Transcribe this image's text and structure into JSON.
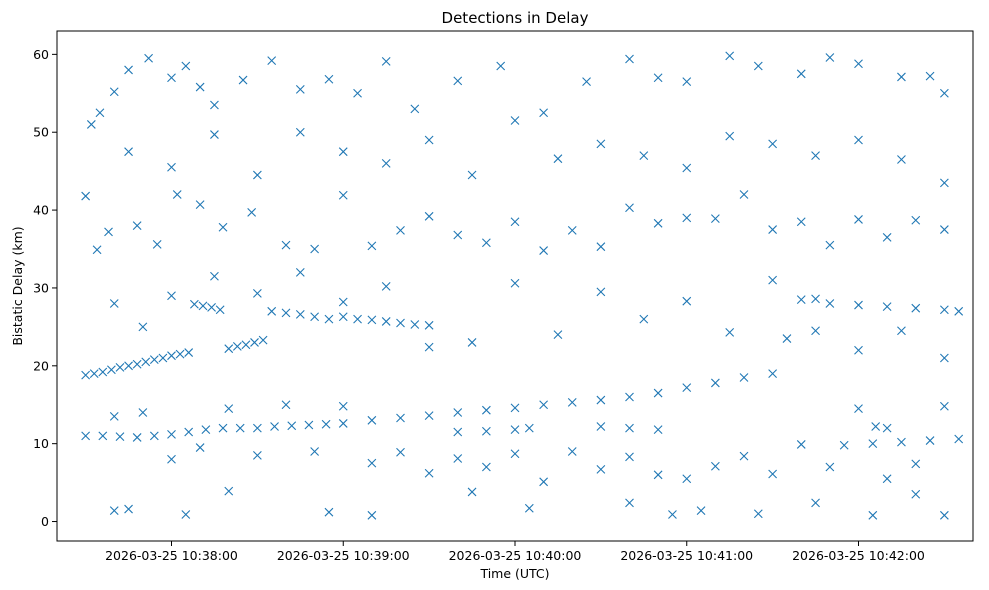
{
  "chart_data": {
    "type": "scatter",
    "title": "Detections in Delay",
    "xlabel": "Time (UTC)",
    "ylabel": "Bistatic Delay (km)",
    "x_axis_kind": "time",
    "xlim": [
      "2026-03-25 10:37:20",
      "2026-03-25 10:42:40"
    ],
    "ylim": [
      -2.5,
      63
    ],
    "x_ticks": [
      "2026-03-25 10:38:00",
      "2026-03-25 10:39:00",
      "2026-03-25 10:40:00",
      "2026-03-25 10:41:00",
      "2026-03-25 10:42:00"
    ],
    "y_ticks": [
      0,
      10,
      20,
      30,
      40,
      50,
      60
    ],
    "marker": "x",
    "color": "#1f77b4",
    "grid": false,
    "series": [
      {
        "points": [
          [
            "10:37:30",
            18.8
          ],
          [
            "10:37:33",
            19.0
          ],
          [
            "10:37:36",
            19.2
          ],
          [
            "10:37:39",
            19.5
          ],
          [
            "10:37:42",
            19.8
          ],
          [
            "10:37:45",
            20.0
          ],
          [
            "10:37:48",
            20.2
          ],
          [
            "10:37:51",
            20.5
          ],
          [
            "10:37:54",
            20.8
          ],
          [
            "10:37:57",
            21.0
          ],
          [
            "10:38:00",
            21.3
          ],
          [
            "10:38:03",
            21.5
          ],
          [
            "10:38:06",
            21.7
          ],
          [
            "10:38:08",
            27.9
          ],
          [
            "10:38:11",
            27.7
          ],
          [
            "10:38:14",
            27.5
          ],
          [
            "10:38:17",
            27.2
          ],
          [
            "10:38:20",
            22.2
          ],
          [
            "10:38:23",
            22.5
          ],
          [
            "10:38:26",
            22.7
          ],
          [
            "10:38:29",
            23.0
          ],
          [
            "10:38:32",
            23.3
          ],
          [
            "10:38:35",
            27.0
          ],
          [
            "10:38:40",
            26.8
          ],
          [
            "10:38:45",
            26.6
          ],
          [
            "10:38:50",
            26.3
          ],
          [
            "10:38:55",
            26.0
          ],
          [
            "10:39:00",
            26.3
          ],
          [
            "10:39:05",
            26.0
          ],
          [
            "10:39:10",
            25.9
          ],
          [
            "10:39:15",
            25.7
          ],
          [
            "10:39:20",
            25.5
          ],
          [
            "10:39:25",
            25.3
          ],
          [
            "10:39:30",
            25.2
          ],
          [
            "10:37:30",
            11.0
          ],
          [
            "10:37:36",
            11.0
          ],
          [
            "10:37:42",
            10.9
          ],
          [
            "10:37:48",
            10.8
          ],
          [
            "10:37:54",
            11.0
          ],
          [
            "10:38:00",
            11.2
          ],
          [
            "10:38:06",
            11.5
          ],
          [
            "10:38:12",
            11.8
          ],
          [
            "10:38:18",
            12.0
          ],
          [
            "10:38:24",
            12.0
          ],
          [
            "10:38:30",
            12.0
          ],
          [
            "10:38:36",
            12.2
          ],
          [
            "10:38:42",
            12.3
          ],
          [
            "10:38:48",
            12.4
          ],
          [
            "10:38:54",
            12.5
          ],
          [
            "10:39:00",
            12.6
          ],
          [
            "10:39:10",
            13.0
          ],
          [
            "10:39:20",
            13.3
          ],
          [
            "10:39:30",
            13.6
          ],
          [
            "10:39:40",
            14.0
          ],
          [
            "10:39:50",
            14.3
          ],
          [
            "10:40:00",
            14.6
          ],
          [
            "10:40:10",
            15.0
          ],
          [
            "10:40:20",
            15.3
          ],
          [
            "10:40:30",
            15.6
          ],
          [
            "10:40:40",
            16.0
          ],
          [
            "10:40:50",
            16.5
          ],
          [
            "10:41:00",
            17.2
          ],
          [
            "10:41:10",
            17.8
          ],
          [
            "10:41:20",
            18.5
          ],
          [
            "10:41:30",
            19.0
          ],
          [
            "10:39:40",
            11.5
          ],
          [
            "10:39:50",
            11.6
          ],
          [
            "10:40:00",
            11.8
          ],
          [
            "10:40:05",
            12.0
          ],
          [
            "10:40:30",
            12.2
          ],
          [
            "10:40:40",
            12.0
          ],
          [
            "10:40:50",
            11.8
          ],
          [
            "10:41:35",
            23.5
          ],
          [
            "10:41:40",
            28.5
          ],
          [
            "10:41:45",
            28.6
          ],
          [
            "10:41:50",
            28.0
          ],
          [
            "10:42:00",
            27.8
          ],
          [
            "10:42:10",
            27.6
          ],
          [
            "10:42:20",
            27.4
          ],
          [
            "10:42:30",
            27.2
          ],
          [
            "10:42:35",
            27.0
          ],
          [
            "10:41:55",
            9.8
          ],
          [
            "10:42:05",
            10.0
          ],
          [
            "10:42:15",
            10.2
          ],
          [
            "10:42:25",
            10.4
          ],
          [
            "10:42:35",
            10.6
          ],
          [
            "10:42:06",
            12.2
          ],
          [
            "10:42:10",
            12.0
          ],
          [
            "10:37:40",
            1.4
          ],
          [
            "10:37:45",
            1.6
          ],
          [
            "10:38:05",
            0.9
          ],
          [
            "10:38:20",
            3.9
          ],
          [
            "10:38:55",
            1.2
          ],
          [
            "10:39:10",
            0.8
          ],
          [
            "10:39:45",
            3.8
          ],
          [
            "10:40:05",
            1.7
          ],
          [
            "10:40:40",
            2.4
          ],
          [
            "10:40:55",
            0.9
          ],
          [
            "10:41:05",
            1.4
          ],
          [
            "10:41:25",
            1.0
          ],
          [
            "10:41:45",
            2.4
          ],
          [
            "10:42:05",
            0.8
          ],
          [
            "10:42:20",
            3.5
          ],
          [
            "10:42:30",
            0.8
          ],
          [
            "10:37:30",
            41.8
          ],
          [
            "10:37:32",
            51.0
          ],
          [
            "10:37:35",
            52.5
          ],
          [
            "10:37:40",
            55.2
          ],
          [
            "10:37:45",
            58.0
          ],
          [
            "10:37:52",
            59.5
          ],
          [
            "10:38:00",
            57.0
          ],
          [
            "10:38:05",
            58.5
          ],
          [
            "10:38:10",
            55.8
          ],
          [
            "10:38:15",
            53.5
          ],
          [
            "10:38:25",
            56.7
          ],
          [
            "10:38:35",
            59.2
          ],
          [
            "10:38:45",
            55.5
          ],
          [
            "10:38:55",
            56.8
          ],
          [
            "10:39:05",
            55.0
          ],
          [
            "10:39:15",
            59.1
          ],
          [
            "10:39:25",
            53.0
          ],
          [
            "10:39:40",
            56.6
          ],
          [
            "10:39:55",
            58.5
          ],
          [
            "10:40:10",
            52.5
          ],
          [
            "10:40:25",
            56.5
          ],
          [
            "10:40:40",
            59.4
          ],
          [
            "10:40:50",
            57.0
          ],
          [
            "10:41:00",
            56.5
          ],
          [
            "10:41:15",
            59.8
          ],
          [
            "10:41:25",
            58.5
          ],
          [
            "10:41:40",
            57.5
          ],
          [
            "10:41:50",
            59.6
          ],
          [
            "10:42:00",
            58.8
          ],
          [
            "10:42:15",
            57.1
          ],
          [
            "10:42:25",
            57.2
          ],
          [
            "10:42:30",
            55.0
          ],
          [
            "10:37:34",
            34.9
          ],
          [
            "10:37:38",
            37.2
          ],
          [
            "10:37:48",
            38.0
          ],
          [
            "10:37:55",
            35.6
          ],
          [
            "10:38:02",
            42.0
          ],
          [
            "10:38:10",
            40.7
          ],
          [
            "10:38:18",
            37.8
          ],
          [
            "10:38:28",
            39.7
          ],
          [
            "10:38:40",
            35.5
          ],
          [
            "10:38:50",
            35.0
          ],
          [
            "10:39:00",
            41.9
          ],
          [
            "10:39:10",
            35.4
          ],
          [
            "10:39:20",
            37.4
          ],
          [
            "10:39:30",
            39.2
          ],
          [
            "10:39:40",
            36.8
          ],
          [
            "10:39:50",
            35.8
          ],
          [
            "10:40:00",
            38.5
          ],
          [
            "10:40:10",
            34.8
          ],
          [
            "10:40:20",
            37.4
          ],
          [
            "10:40:30",
            35.3
          ],
          [
            "10:40:40",
            40.3
          ],
          [
            "10:40:50",
            38.3
          ],
          [
            "10:41:00",
            39.0
          ],
          [
            "10:41:10",
            38.9
          ],
          [
            "10:41:20",
            42.0
          ],
          [
            "10:41:30",
            37.5
          ],
          [
            "10:41:40",
            38.5
          ],
          [
            "10:41:50",
            35.5
          ],
          [
            "10:42:00",
            38.8
          ],
          [
            "10:42:10",
            36.5
          ],
          [
            "10:42:20",
            38.7
          ],
          [
            "10:42:30",
            37.5
          ],
          [
            "10:37:40",
            28.0
          ],
          [
            "10:37:50",
            25.0
          ],
          [
            "10:38:00",
            29.0
          ],
          [
            "10:38:15",
            31.5
          ],
          [
            "10:38:30",
            29.3
          ],
          [
            "10:38:45",
            32.0
          ],
          [
            "10:39:00",
            28.2
          ],
          [
            "10:39:15",
            30.2
          ],
          [
            "10:39:30",
            22.4
          ],
          [
            "10:39:45",
            23.0
          ],
          [
            "10:40:00",
            30.6
          ],
          [
            "10:40:15",
            24.0
          ],
          [
            "10:40:30",
            29.5
          ],
          [
            "10:40:45",
            26.0
          ],
          [
            "10:41:00",
            28.3
          ],
          [
            "10:41:15",
            24.3
          ],
          [
            "10:41:30",
            31.0
          ],
          [
            "10:41:45",
            24.5
          ],
          [
            "10:42:00",
            22.0
          ],
          [
            "10:42:15",
            24.5
          ],
          [
            "10:42:30",
            21.0
          ],
          [
            "10:37:40",
            13.5
          ],
          [
            "10:37:50",
            14.0
          ],
          [
            "10:38:00",
            8.0
          ],
          [
            "10:38:10",
            9.5
          ],
          [
            "10:38:20",
            14.5
          ],
          [
            "10:38:30",
            8.5
          ],
          [
            "10:38:40",
            15.0
          ],
          [
            "10:38:50",
            9.0
          ],
          [
            "10:39:00",
            14.8
          ],
          [
            "10:39:10",
            7.5
          ],
          [
            "10:39:20",
            8.9
          ],
          [
            "10:39:30",
            6.2
          ],
          [
            "10:39:40",
            8.1
          ],
          [
            "10:39:50",
            7.0
          ],
          [
            "10:40:00",
            8.7
          ],
          [
            "10:40:10",
            5.1
          ],
          [
            "10:40:20",
            9.0
          ],
          [
            "10:40:30",
            6.7
          ],
          [
            "10:40:40",
            8.3
          ],
          [
            "10:40:50",
            6.0
          ],
          [
            "10:41:00",
            5.5
          ],
          [
            "10:41:10",
            7.1
          ],
          [
            "10:41:20",
            8.4
          ],
          [
            "10:41:30",
            6.1
          ],
          [
            "10:41:40",
            9.9
          ],
          [
            "10:41:50",
            7.0
          ],
          [
            "10:42:00",
            14.5
          ],
          [
            "10:42:10",
            5.5
          ],
          [
            "10:42:20",
            7.4
          ],
          [
            "10:42:30",
            14.8
          ],
          [
            "10:37:45",
            47.5
          ],
          [
            "10:38:00",
            45.5
          ],
          [
            "10:38:15",
            49.7
          ],
          [
            "10:38:30",
            44.5
          ],
          [
            "10:38:45",
            50.0
          ],
          [
            "10:39:00",
            47.5
          ],
          [
            "10:39:15",
            46.0
          ],
          [
            "10:39:30",
            49.0
          ],
          [
            "10:39:45",
            44.5
          ],
          [
            "10:40:00",
            51.5
          ],
          [
            "10:40:15",
            46.6
          ],
          [
            "10:40:30",
            48.5
          ],
          [
            "10:40:45",
            47.0
          ],
          [
            "10:41:00",
            45.4
          ],
          [
            "10:41:15",
            49.5
          ],
          [
            "10:41:30",
            48.5
          ],
          [
            "10:41:45",
            47.0
          ],
          [
            "10:42:00",
            49.0
          ],
          [
            "10:42:15",
            46.5
          ],
          [
            "10:42:30",
            43.5
          ]
        ]
      }
    ]
  }
}
